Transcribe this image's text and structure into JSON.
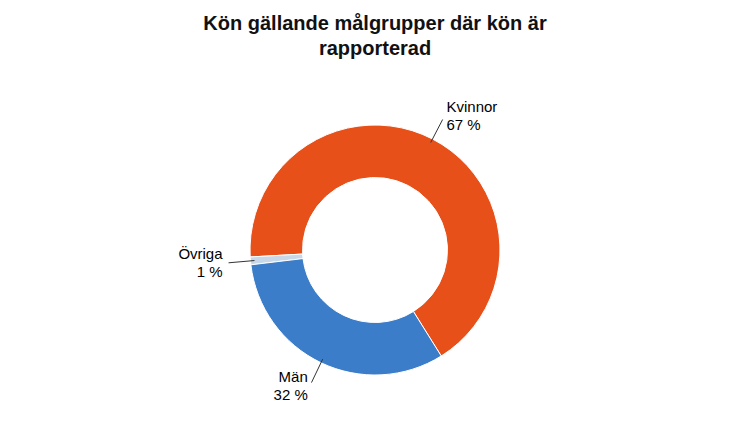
{
  "chart_data": {
    "type": "donut",
    "title": "Kön gällande målgrupper där kön är\nrapporterad",
    "categories": [
      "Kvinnor",
      "Övriga",
      "Män"
    ],
    "values": [
      67,
      1,
      32
    ],
    "value_labels": [
      "67 %",
      "1 %",
      "32 %"
    ],
    "colors": [
      "#E8501A",
      "#C8D8E8",
      "#3B7DC8"
    ],
    "data_labels": true
  }
}
